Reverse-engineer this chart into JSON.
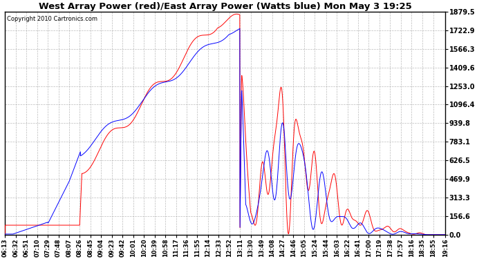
{
  "title": "West Array Power (red)/East Array Power (Watts blue) Mon May 3 19:25",
  "copyright": "Copyright 2010 Cartronics.com",
  "background_color": "#ffffff",
  "plot_bg_color": "#ffffff",
  "grid_color": "#aaaaaa",
  "line_color_red": "#ff0000",
  "line_color_blue": "#0000ff",
  "yticks": [
    0.0,
    156.6,
    313.3,
    469.9,
    626.5,
    783.1,
    939.8,
    1096.4,
    1253.0,
    1409.6,
    1566.3,
    1722.9,
    1879.5
  ],
  "ymax": 1879.5,
  "ymin": 0.0,
  "xtick_labels": [
    "06:13",
    "06:32",
    "06:51",
    "07:10",
    "07:29",
    "07:48",
    "08:07",
    "08:26",
    "08:45",
    "09:04",
    "09:23",
    "09:42",
    "10:01",
    "10:20",
    "10:39",
    "10:58",
    "11:17",
    "11:36",
    "11:55",
    "12:14",
    "12:33",
    "12:52",
    "13:11",
    "13:30",
    "13:49",
    "14:08",
    "14:27",
    "14:46",
    "15:05",
    "15:24",
    "15:44",
    "16:03",
    "16:22",
    "16:41",
    "17:00",
    "17:19",
    "17:38",
    "17:57",
    "18:16",
    "18:35",
    "18:55",
    "19:16"
  ]
}
